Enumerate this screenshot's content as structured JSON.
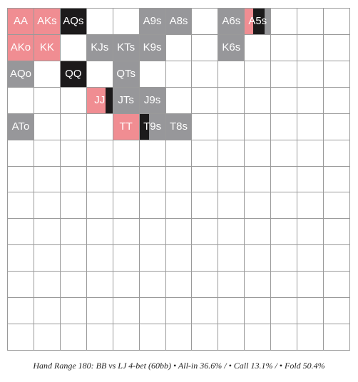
{
  "colors": {
    "allin": "#f08d92",
    "call": "#1c1a1b",
    "fold": "#97979a",
    "empty": "#ffffff",
    "grid": "#9a9a9a"
  },
  "range": {
    "rows": 13,
    "cols": 13,
    "hands": [
      {
        "label": "AA",
        "row": 0,
        "col": 0,
        "allin": 1.0,
        "call": 0.0,
        "fold": 0.0
      },
      {
        "label": "AKs",
        "row": 0,
        "col": 1,
        "allin": 1.0,
        "call": 0.0,
        "fold": 0.0
      },
      {
        "label": "AQs",
        "row": 0,
        "col": 2,
        "allin": 0.0,
        "call": 1.0,
        "fold": 0.0
      },
      {
        "label": "A9s",
        "row": 0,
        "col": 5,
        "allin": 0.0,
        "call": 0.0,
        "fold": 1.0
      },
      {
        "label": "A8s",
        "row": 0,
        "col": 6,
        "allin": 0.0,
        "call": 0.0,
        "fold": 1.0
      },
      {
        "label": "A6s",
        "row": 0,
        "col": 8,
        "allin": 0.0,
        "call": 0.0,
        "fold": 1.0
      },
      {
        "label": "A5s",
        "row": 0,
        "col": 9,
        "allin": 0.33,
        "call": 0.45,
        "fold": 0.22
      },
      {
        "label": "AKo",
        "row": 1,
        "col": 0,
        "allin": 1.0,
        "call": 0.0,
        "fold": 0.0
      },
      {
        "label": "KK",
        "row": 1,
        "col": 1,
        "allin": 1.0,
        "call": 0.0,
        "fold": 0.0
      },
      {
        "label": "KJs",
        "row": 1,
        "col": 3,
        "allin": 0.0,
        "call": 0.0,
        "fold": 1.0
      },
      {
        "label": "KTs",
        "row": 1,
        "col": 4,
        "allin": 0.0,
        "call": 0.0,
        "fold": 1.0
      },
      {
        "label": "K9s",
        "row": 1,
        "col": 5,
        "allin": 0.0,
        "call": 0.0,
        "fold": 1.0
      },
      {
        "label": "K6s",
        "row": 1,
        "col": 8,
        "allin": 0.0,
        "call": 0.0,
        "fold": 1.0
      },
      {
        "label": "AQo",
        "row": 2,
        "col": 0,
        "allin": 0.0,
        "call": 0.0,
        "fold": 1.0
      },
      {
        "label": "QQ",
        "row": 2,
        "col": 2,
        "allin": 0.0,
        "call": 1.0,
        "fold": 0.0
      },
      {
        "label": "QTs",
        "row": 2,
        "col": 4,
        "allin": 0.0,
        "call": 0.0,
        "fold": 1.0
      },
      {
        "label": "JJ",
        "row": 3,
        "col": 3,
        "allin": 0.72,
        "call": 0.28,
        "fold": 0.0
      },
      {
        "label": "JTs",
        "row": 3,
        "col": 4,
        "allin": 0.0,
        "call": 0.0,
        "fold": 1.0
      },
      {
        "label": "J9s",
        "row": 3,
        "col": 5,
        "allin": 0.0,
        "call": 0.0,
        "fold": 1.0
      },
      {
        "label": "ATo",
        "row": 4,
        "col": 0,
        "allin": 0.0,
        "call": 0.0,
        "fold": 1.0
      },
      {
        "label": "TT",
        "row": 4,
        "col": 4,
        "allin": 1.0,
        "call": 0.0,
        "fold": 0.0
      },
      {
        "label": "T9s",
        "row": 4,
        "col": 5,
        "allin": 0.0,
        "call": 0.38,
        "fold": 0.62
      },
      {
        "label": "T8s",
        "row": 4,
        "col": 6,
        "allin": 0.0,
        "call": 0.0,
        "fold": 1.0
      }
    ]
  },
  "caption": "Hand Range 180: BB vs LJ 4-bet (60bb) • All-in 36.6% / • Call 13.1% / • Fold 50.4%"
}
